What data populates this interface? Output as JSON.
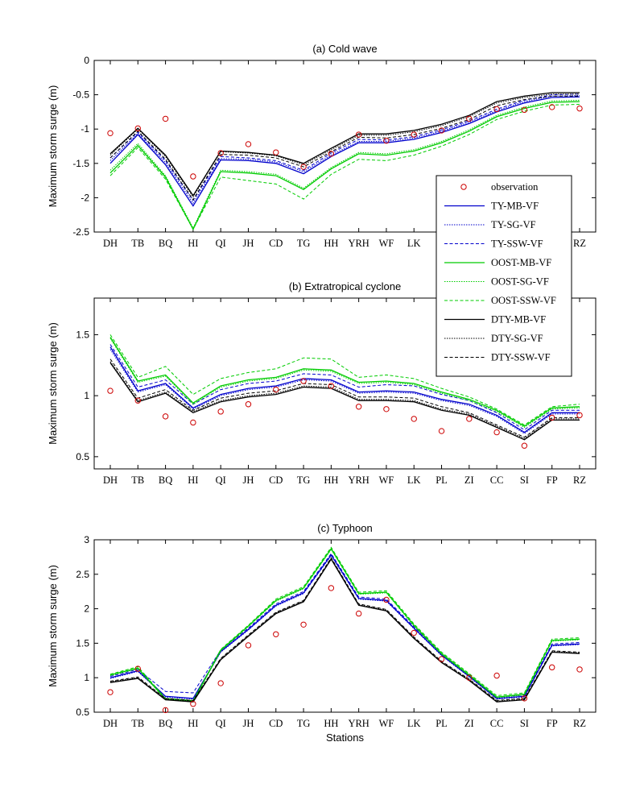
{
  "chart_data": [
    {
      "type": "line",
      "title": "(a) Cold wave",
      "ylabel": "Maximum storm surge (m)",
      "xlabel": "",
      "ylim": [
        -2.5,
        0
      ],
      "yticks": [
        -2.5,
        -2,
        -1.5,
        -1,
        -0.5,
        0
      ],
      "ytick_labels": [
        "-2.5",
        "-2",
        "-1.5",
        "-1",
        "-0.5",
        "0"
      ],
      "categories": [
        "DH",
        "TB",
        "BQ",
        "HI",
        "QI",
        "JH",
        "CD",
        "TG",
        "HH",
        "YRH",
        "WF",
        "LK",
        "PL",
        "ZI",
        "CC",
        "SI",
        "FP",
        "RZ"
      ],
      "observation": [
        -1.06,
        -0.99,
        -0.85,
        -1.69,
        -1.35,
        -1.22,
        -1.34,
        -1.55,
        -1.36,
        -1.08,
        -1.17,
        -1.08,
        -1.02,
        -0.85,
        -0.71,
        -0.72,
        -0.68,
        -0.7
      ],
      "series": [
        {
          "name": "TY-MB-VF",
          "values": [
            -1.5,
            -1.08,
            -1.52,
            -2.12,
            -1.45,
            -1.46,
            -1.5,
            -1.65,
            -1.4,
            -1.2,
            -1.2,
            -1.15,
            -1.05,
            -0.92,
            -0.75,
            -0.62,
            -0.54,
            -0.53
          ]
        },
        {
          "name": "TY-SG-VF",
          "values": [
            -1.46,
            -1.06,
            -1.49,
            -2.08,
            -1.43,
            -1.44,
            -1.48,
            -1.62,
            -1.38,
            -1.18,
            -1.18,
            -1.13,
            -1.03,
            -0.9,
            -0.73,
            -0.6,
            -0.52,
            -0.51
          ]
        },
        {
          "name": "TY-SSW-VF",
          "values": [
            -1.42,
            -1.04,
            -1.46,
            -2.04,
            -1.4,
            -1.42,
            -1.46,
            -1.6,
            -1.35,
            -1.15,
            -1.16,
            -1.11,
            -1.01,
            -0.88,
            -0.71,
            -0.58,
            -0.5,
            -0.49
          ]
        },
        {
          "name": "OOST-MB-VF",
          "values": [
            -1.64,
            -1.24,
            -1.7,
            -2.46,
            -1.62,
            -1.64,
            -1.68,
            -1.88,
            -1.58,
            -1.36,
            -1.38,
            -1.32,
            -1.2,
            -1.03,
            -0.82,
            -0.7,
            -0.61,
            -0.6
          ]
        },
        {
          "name": "OOST-SG-VF",
          "values": [
            -1.6,
            -1.21,
            -1.68,
            -2.44,
            -1.6,
            -1.62,
            -1.66,
            -1.86,
            -1.56,
            -1.34,
            -1.36,
            -1.3,
            -1.18,
            -1.01,
            -0.8,
            -0.68,
            -0.59,
            -0.58
          ]
        },
        {
          "name": "OOST-SSW-VF",
          "values": [
            -1.68,
            -1.27,
            -1.73,
            -2.46,
            -1.7,
            -1.75,
            -1.8,
            -2.02,
            -1.66,
            -1.44,
            -1.46,
            -1.38,
            -1.25,
            -1.08,
            -0.86,
            -0.74,
            -0.65,
            -0.64
          ]
        },
        {
          "name": "DTY-MB-VF",
          "values": [
            -1.36,
            -0.99,
            -1.38,
            -1.97,
            -1.32,
            -1.34,
            -1.38,
            -1.5,
            -1.28,
            -1.07,
            -1.07,
            -1.02,
            -0.93,
            -0.8,
            -0.6,
            -0.52,
            -0.47,
            -0.47
          ]
        },
        {
          "name": "DTY-SG-VF",
          "values": [
            -1.38,
            -1.0,
            -1.4,
            -1.99,
            -1.33,
            -1.35,
            -1.39,
            -1.52,
            -1.3,
            -1.09,
            -1.09,
            -1.04,
            -0.95,
            -0.82,
            -0.62,
            -0.54,
            -0.49,
            -0.49
          ]
        },
        {
          "name": "DTY-SSW-VF",
          "values": [
            -1.42,
            -1.03,
            -1.44,
            -2.03,
            -1.37,
            -1.38,
            -1.42,
            -1.55,
            -1.33,
            -1.12,
            -1.13,
            -1.08,
            -0.99,
            -0.86,
            -0.66,
            -0.57,
            -0.52,
            -0.52
          ]
        }
      ]
    },
    {
      "type": "line",
      "title": "(b) Extratropical cyclone",
      "ylabel": "Maximum storm surge (m)",
      "xlabel": "",
      "ylim": [
        0.4,
        1.8
      ],
      "yticks": [
        0.5,
        1,
        1.5
      ],
      "ytick_labels": [
        "0.5",
        "1",
        "1.5"
      ],
      "categories": [
        "DH",
        "TB",
        "BQ",
        "HI",
        "QI",
        "JH",
        "CD",
        "TG",
        "HH",
        "YRH",
        "WF",
        "LK",
        "PL",
        "ZI",
        "CC",
        "SI",
        "FP",
        "RZ"
      ],
      "observation": [
        1.04,
        0.96,
        0.83,
        0.78,
        0.87,
        0.93,
        1.05,
        1.12,
        1.08,
        0.91,
        0.89,
        0.81,
        0.71,
        0.81,
        0.7,
        0.59,
        0.82,
        0.84
      ],
      "series": [
        {
          "name": "TY-MB-VF",
          "values": [
            1.4,
            1.04,
            1.1,
            0.9,
            1.01,
            1.06,
            1.08,
            1.14,
            1.13,
            1.03,
            1.04,
            1.03,
            0.97,
            0.93,
            0.84,
            0.7,
            0.86,
            0.86
          ]
        },
        {
          "name": "TY-SG-VF",
          "values": [
            1.38,
            1.03,
            1.09,
            0.89,
            1.0,
            1.05,
            1.07,
            1.13,
            1.12,
            1.02,
            1.03,
            1.02,
            0.96,
            0.92,
            0.83,
            0.69,
            0.85,
            0.85
          ]
        },
        {
          "name": "TY-SSW-VF",
          "values": [
            1.42,
            1.07,
            1.13,
            0.93,
            1.05,
            1.1,
            1.12,
            1.18,
            1.17,
            1.07,
            1.09,
            1.08,
            1.01,
            0.96,
            0.86,
            0.72,
            0.88,
            0.88
          ]
        },
        {
          "name": "OOST-MB-VF",
          "values": [
            1.48,
            1.12,
            1.17,
            0.94,
            1.08,
            1.13,
            1.15,
            1.22,
            1.21,
            1.11,
            1.12,
            1.1,
            1.03,
            0.97,
            0.88,
            0.75,
            0.9,
            0.91
          ]
        },
        {
          "name": "OOST-SG-VF",
          "values": [
            1.47,
            1.11,
            1.16,
            0.93,
            1.07,
            1.12,
            1.14,
            1.21,
            1.2,
            1.1,
            1.11,
            1.09,
            1.02,
            0.96,
            0.87,
            0.74,
            0.89,
            0.9
          ]
        },
        {
          "name": "OOST-SSW-VF",
          "values": [
            1.5,
            1.15,
            1.24,
            1.01,
            1.14,
            1.19,
            1.22,
            1.31,
            1.3,
            1.15,
            1.17,
            1.14,
            1.06,
            0.99,
            0.89,
            0.76,
            0.91,
            0.93
          ]
        },
        {
          "name": "DTY-MB-VF",
          "values": [
            1.27,
            0.95,
            1.02,
            0.86,
            0.95,
            0.99,
            1.01,
            1.07,
            1.06,
            0.96,
            0.96,
            0.95,
            0.88,
            0.84,
            0.74,
            0.64,
            0.8,
            0.8
          ]
        },
        {
          "name": "DTY-SG-VF",
          "values": [
            1.28,
            0.96,
            1.03,
            0.87,
            0.96,
            1.0,
            1.02,
            1.08,
            1.07,
            0.97,
            0.97,
            0.96,
            0.89,
            0.85,
            0.75,
            0.65,
            0.81,
            0.81
          ]
        },
        {
          "name": "DTY-SSW-VF",
          "values": [
            1.3,
            0.98,
            1.05,
            0.88,
            0.98,
            1.02,
            1.04,
            1.1,
            1.09,
            0.99,
            0.99,
            0.98,
            0.91,
            0.86,
            0.76,
            0.66,
            0.82,
            0.82
          ]
        }
      ]
    },
    {
      "type": "line",
      "title": "(c) Typhoon",
      "ylabel": "Maximum storm surge (m)",
      "xlabel": "Stations",
      "ylim": [
        0.5,
        3
      ],
      "yticks": [
        0.5,
        1,
        1.5,
        2,
        2.5,
        3
      ],
      "ytick_labels": [
        "0.5",
        "1",
        "1.5",
        "2",
        "2.5",
        "3"
      ],
      "categories": [
        "DH",
        "TB",
        "BQ",
        "HI",
        "QI",
        "JH",
        "CD",
        "TG",
        "HH",
        "YRH",
        "WF",
        "LK",
        "PL",
        "ZI",
        "CC",
        "SI",
        "FP",
        "RZ"
      ],
      "observation": [
        0.79,
        1.13,
        0.53,
        0.62,
        0.92,
        1.47,
        1.63,
        1.77,
        2.3,
        1.93,
        2.13,
        1.65,
        1.27,
        1.0,
        1.03,
        0.7,
        1.15,
        1.12
      ],
      "series": [
        {
          "name": "TY-MB-VF",
          "values": [
            1.0,
            1.1,
            0.73,
            0.7,
            1.38,
            1.7,
            2.05,
            2.23,
            2.78,
            2.15,
            2.12,
            1.72,
            1.33,
            1.02,
            0.7,
            0.73,
            1.47,
            1.49
          ]
        },
        {
          "name": "TY-SG-VF",
          "values": [
            0.99,
            1.09,
            0.72,
            0.69,
            1.37,
            1.69,
            2.04,
            2.22,
            2.77,
            2.14,
            2.11,
            1.71,
            1.32,
            1.01,
            0.69,
            0.72,
            1.46,
            1.48
          ]
        },
        {
          "name": "TY-SSW-VF",
          "values": [
            1.02,
            1.12,
            0.8,
            0.78,
            1.4,
            1.72,
            2.07,
            2.25,
            2.8,
            2.17,
            2.14,
            1.74,
            1.35,
            1.04,
            0.72,
            0.75,
            1.49,
            1.51
          ]
        },
        {
          "name": "OOST-MB-VF",
          "values": [
            1.04,
            1.14,
            0.69,
            0.66,
            1.4,
            1.75,
            2.12,
            2.3,
            2.87,
            2.22,
            2.24,
            1.76,
            1.35,
            1.04,
            0.72,
            0.76,
            1.54,
            1.56
          ]
        },
        {
          "name": "OOST-SG-VF",
          "values": [
            1.03,
            1.13,
            0.68,
            0.65,
            1.39,
            1.74,
            2.11,
            2.29,
            2.86,
            2.21,
            2.23,
            1.75,
            1.34,
            1.03,
            0.71,
            0.75,
            1.53,
            1.55
          ]
        },
        {
          "name": "OOST-SSW-VF",
          "values": [
            1.05,
            1.16,
            0.7,
            0.67,
            1.41,
            1.76,
            2.14,
            2.32,
            2.89,
            2.24,
            2.26,
            1.78,
            1.37,
            1.06,
            0.74,
            0.78,
            1.56,
            1.58
          ]
        },
        {
          "name": "DTY-MB-VF",
          "values": [
            0.93,
            0.99,
            0.68,
            0.65,
            1.26,
            1.6,
            1.93,
            2.1,
            2.72,
            2.05,
            1.97,
            1.57,
            1.22,
            0.96,
            0.65,
            0.68,
            1.37,
            1.35
          ]
        },
        {
          "name": "DTY-SG-VF",
          "values": [
            0.94,
            1.0,
            0.69,
            0.66,
            1.27,
            1.61,
            1.94,
            2.11,
            2.73,
            2.06,
            1.98,
            1.58,
            1.23,
            0.97,
            0.66,
            0.69,
            1.38,
            1.36
          ]
        },
        {
          "name": "DTY-SSW-VF",
          "values": [
            0.95,
            1.01,
            0.7,
            0.67,
            1.28,
            1.62,
            1.95,
            2.12,
            2.74,
            2.07,
            1.99,
            1.59,
            1.24,
            0.98,
            0.67,
            0.7,
            1.39,
            1.37
          ]
        }
      ]
    }
  ],
  "legend": {
    "placement": "right, between panels (a) and (b)",
    "entries": [
      {
        "name": "observation",
        "color": "#cc0000",
        "style": "circle"
      },
      {
        "name": "TY-MB-VF",
        "color": "#0000cc",
        "style": "solid"
      },
      {
        "name": "TY-SG-VF",
        "color": "#0000cc",
        "style": "dotted"
      },
      {
        "name": "TY-SSW-VF",
        "color": "#0000cc",
        "style": "dashed"
      },
      {
        "name": "OOST-MB-VF",
        "color": "#00cc00",
        "style": "solid"
      },
      {
        "name": "OOST-SG-VF",
        "color": "#00cc00",
        "style": "dotted"
      },
      {
        "name": "OOST-SSW-VF",
        "color": "#00cc00",
        "style": "dashed"
      },
      {
        "name": "DTY-MB-VF",
        "color": "#000000",
        "style": "solid"
      },
      {
        "name": "DTY-SG-VF",
        "color": "#000000",
        "style": "dotted"
      },
      {
        "name": "DTY-SSW-VF",
        "color": "#000000",
        "style": "dashed"
      }
    ]
  },
  "colors": {
    "TY": "#0000cc",
    "OOST": "#00cc00",
    "DTY": "#000000",
    "observation": "#cc0000"
  }
}
